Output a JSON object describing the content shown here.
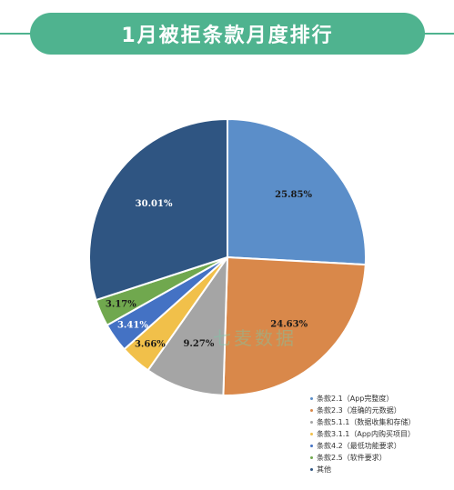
{
  "header": {
    "title": "1月被拒条款月度排行"
  },
  "watermark": "七麦数据",
  "colors": {
    "accent": "#4fb38f",
    "slices": [
      "#5b8ec9",
      "#d9884a",
      "#a5a5a5",
      "#f1c04a",
      "#4472c4",
      "#70a84e",
      "#2f5582"
    ]
  },
  "chart_data": {
    "type": "pie",
    "start_angle_deg": 0,
    "direction": "clockwise",
    "slices": [
      {
        "label": "条款2.1（App完整度）",
        "value": 25.85,
        "display": "25.85%",
        "label_color": "#1a1a1a"
      },
      {
        "label": "条款2.3（准确的元数据）",
        "value": 24.63,
        "display": "24.63%",
        "label_color": "#1a1a1a"
      },
      {
        "label": "条款5.1.1（数据收集和存储）",
        "value": 9.27,
        "display": "9.27%",
        "label_color": "#1a1a1a"
      },
      {
        "label": "条款3.1.1（App内购买项目）",
        "value": 3.66,
        "display": "3.66%",
        "label_color": "#1a1a1a"
      },
      {
        "label": "条款4.2（最低功能要求）",
        "value": 3.41,
        "display": "3.41%",
        "label_color": "#ffffff"
      },
      {
        "label": "条款2.5（软件要求）",
        "value": 3.17,
        "display": "3.17%",
        "label_color": "#1a1a1a"
      },
      {
        "label": "其他",
        "value": 30.01,
        "display": "30.01%",
        "label_color": "#ffffff"
      }
    ],
    "legend_position": "bottom-right"
  }
}
